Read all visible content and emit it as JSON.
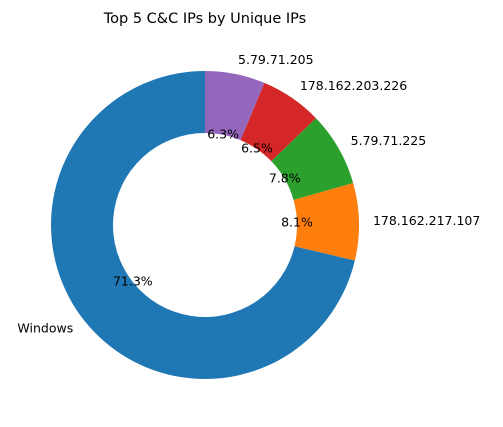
{
  "chart_data": {
    "type": "pie",
    "style": "donut",
    "title": "Top 5 C&C IPs by Unique IPs",
    "start_angle_deg": 90,
    "direction": "counterclockwise",
    "slices": [
      {
        "label": "Windows",
        "value": 71.3,
        "pct_label": "71.3%",
        "color": "#1f77b4"
      },
      {
        "label": "178.162.217.107",
        "value": 8.1,
        "pct_label": "8.1%",
        "color": "#ff7f0e"
      },
      {
        "label": "5.79.71.225",
        "value": 7.8,
        "pct_label": "7.8%",
        "color": "#2ca02c"
      },
      {
        "label": "178.162.203.226",
        "value": 6.5,
        "pct_label": "6.5%",
        "color": "#d62728"
      },
      {
        "label": "5.79.71.205",
        "value": 6.3,
        "pct_label": "6.3%",
        "color": "#9467bd"
      }
    ]
  }
}
